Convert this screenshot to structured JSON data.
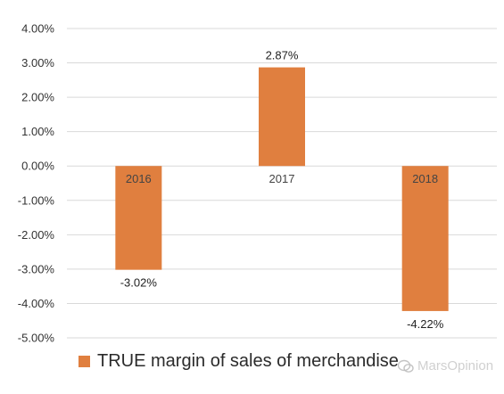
{
  "chart_data": {
    "type": "bar",
    "categories": [
      "2016",
      "2017",
      "2018"
    ],
    "series": [
      {
        "name": "TRUE margin of sales of merchandise",
        "values": [
          -3.02,
          2.87,
          -4.22
        ]
      }
    ],
    "data_labels": [
      "-3.02%",
      "2.87%",
      "-4.22%"
    ],
    "yticks": [
      "4.00%",
      "3.00%",
      "2.00%",
      "1.00%",
      "0.00%",
      "-1.00%",
      "-2.00%",
      "-3.00%",
      "-4.00%",
      "-5.00%"
    ],
    "ylim": [
      -5,
      4
    ],
    "grid": true,
    "legend_position": "bottom",
    "colors": {
      "bar": "#E07F3F",
      "grid": "#D9D9D9"
    }
  },
  "legend": {
    "label": "TRUE margin of sales of merchandise"
  },
  "watermark": {
    "text": "MarsOpinion"
  }
}
